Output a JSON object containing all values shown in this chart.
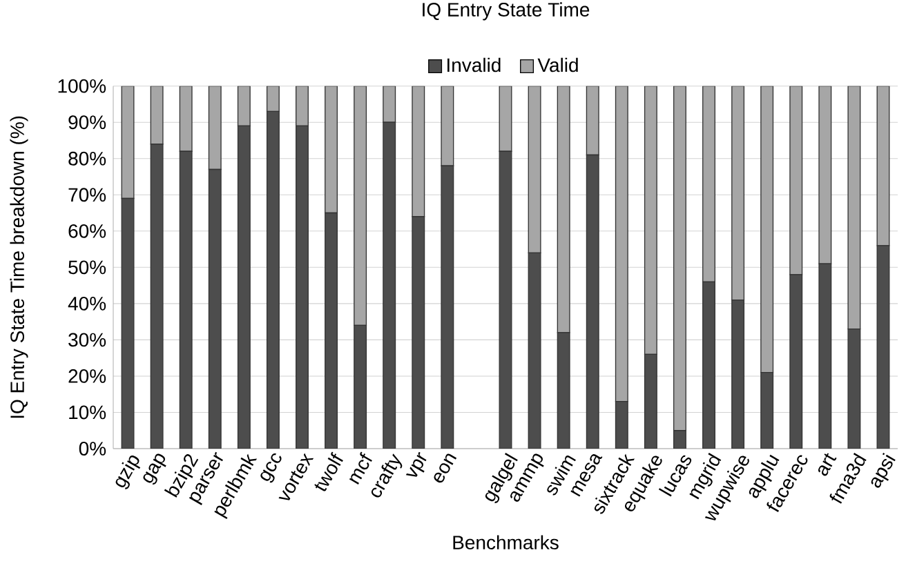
{
  "chart_data": {
    "type": "bar",
    "stacked": true,
    "title": "IQ Entry State Time",
    "xlabel": "Benchmarks",
    "ylabel": "IQ Entry State Time breakdown (%)",
    "categories": [
      "gzip",
      "gap",
      "bzip2",
      "parser",
      "perlbmk",
      "gcc",
      "vortex",
      "twolf",
      "mcf",
      "crafty",
      "vpr",
      "eon",
      null,
      "galgel",
      "ammp",
      "swim",
      "mesa",
      "sixtrack",
      "equake",
      "lucas",
      "mgrid",
      "wupwise",
      "applu",
      "facerec",
      "art",
      "fma3d",
      "apsi"
    ],
    "series": [
      {
        "name": "Invalid",
        "color": "#4d4d4d",
        "values": [
          69,
          84,
          82,
          77,
          89,
          93,
          89,
          65,
          34,
          90,
          64,
          78,
          null,
          82,
          54,
          32,
          81,
          13,
          26,
          5,
          46,
          41,
          21,
          48,
          51,
          33,
          56
        ]
      },
      {
        "name": "Valid",
        "color": "#a6a6a6",
        "values": [
          31,
          16,
          18,
          23,
          11,
          7,
          11,
          35,
          66,
          10,
          36,
          22,
          null,
          18,
          46,
          68,
          19,
          87,
          74,
          95,
          54,
          59,
          79,
          52,
          49,
          67,
          44
        ]
      }
    ],
    "ylim": [
      0,
      100
    ],
    "yticks": [
      {
        "value": 0,
        "label": "0%"
      },
      {
        "value": 10,
        "label": "10%"
      },
      {
        "value": 20,
        "label": "20%"
      },
      {
        "value": 30,
        "label": "30%"
      },
      {
        "value": 40,
        "label": "40%"
      },
      {
        "value": 50,
        "label": "50%"
      },
      {
        "value": 60,
        "label": "60%"
      },
      {
        "value": 70,
        "label": "70%"
      },
      {
        "value": 80,
        "label": "80%"
      },
      {
        "value": 90,
        "label": "90%"
      },
      {
        "value": 100,
        "label": "100%"
      }
    ],
    "grid": "y",
    "legend": "top"
  }
}
